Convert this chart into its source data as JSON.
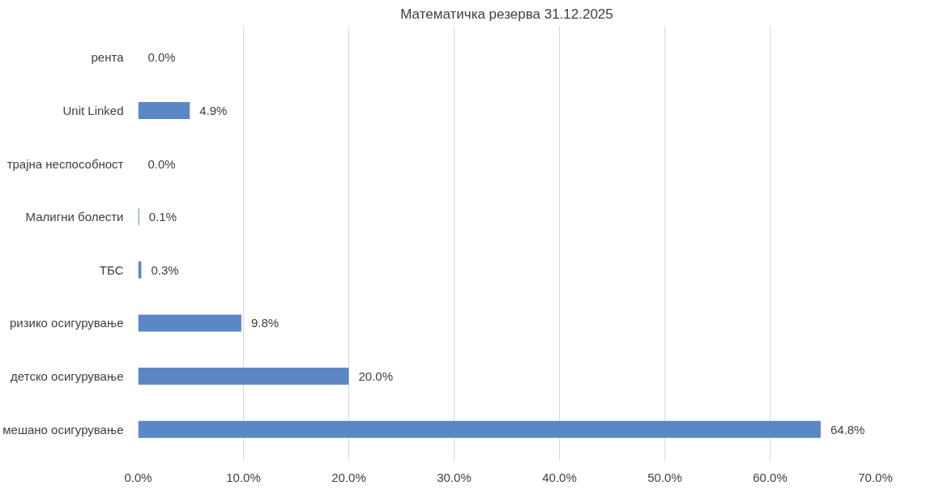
{
  "chart_data": {
    "type": "bar",
    "orientation": "horizontal",
    "title": "Математичка резерва 31.12.2025",
    "categories": [
      "рента",
      "Unit Linked",
      "трајна неспособност",
      "Малигни болести",
      "ТБС",
      "ризико осигурување",
      "детско осигурување",
      "мешано осигурување"
    ],
    "values": [
      0.0,
      4.9,
      0.0,
      0.1,
      0.3,
      9.8,
      20.0,
      64.8
    ],
    "value_labels": [
      "0.0%",
      "4.9%",
      "0.0%",
      "0.1%",
      "0.3%",
      "9.8%",
      "20.0%",
      "64.8%"
    ],
    "color": "#5b87c4",
    "xlim": [
      0,
      70
    ],
    "xticks": [
      {
        "value": 0,
        "label": "0.0%"
      },
      {
        "value": 10,
        "label": "10.0%"
      },
      {
        "value": 20,
        "label": "20.0%"
      },
      {
        "value": 30,
        "label": "30.0%"
      },
      {
        "value": 40,
        "label": "40.0%"
      },
      {
        "value": 50,
        "label": "50.0%"
      },
      {
        "value": 60,
        "label": "60.0%"
      },
      {
        "value": 70,
        "label": "70.0%"
      }
    ],
    "grid": "x"
  }
}
